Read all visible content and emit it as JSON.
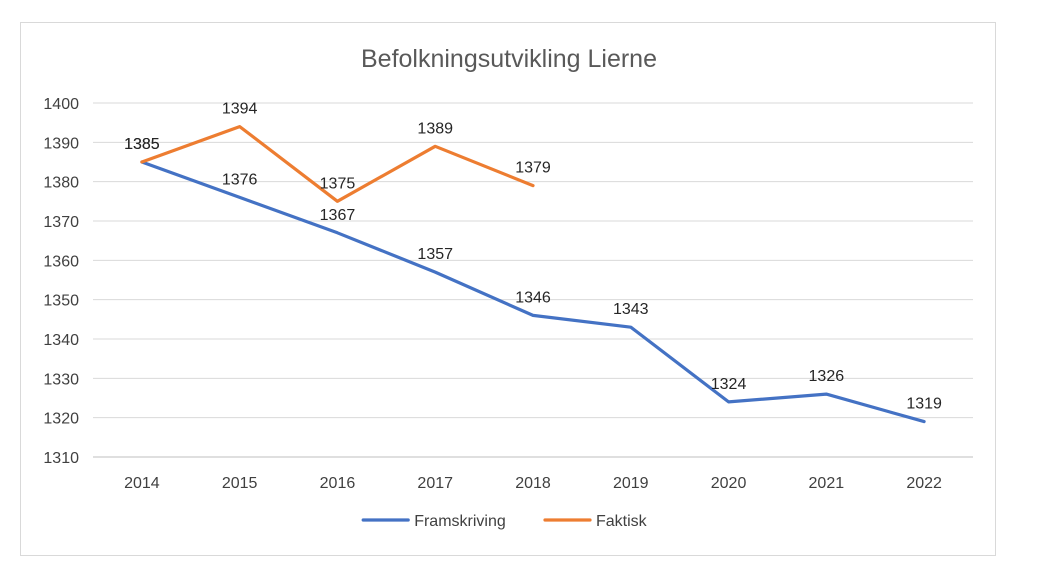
{
  "chart_data": {
    "type": "line",
    "title": "Befolkningsutvikling Lierne",
    "xlabel": "",
    "ylabel": "",
    "categories": [
      "2014",
      "2015",
      "2016",
      "2017",
      "2018",
      "2019",
      "2020",
      "2021",
      "2022"
    ],
    "ylim": [
      1310,
      1400
    ],
    "yticks": [
      1310,
      1320,
      1330,
      1340,
      1350,
      1360,
      1370,
      1380,
      1390,
      1400
    ],
    "grid": true,
    "legend_position": "bottom",
    "series": [
      {
        "name": "Framskriving",
        "color": "#4472c4",
        "values": [
          1385,
          1376,
          1367,
          1357,
          1346,
          1343,
          1324,
          1326,
          1319
        ]
      },
      {
        "name": "Faktisk",
        "color": "#ed7d31",
        "values": [
          1385,
          1394,
          1375,
          1389,
          1379,
          null,
          null,
          null,
          null
        ]
      }
    ]
  }
}
